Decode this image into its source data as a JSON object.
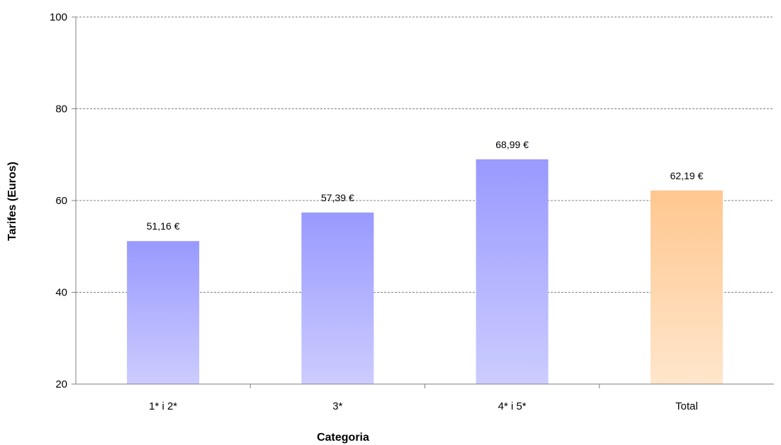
{
  "chart_data": {
    "type": "bar",
    "categories": [
      "1* i 2*",
      "3*",
      "4* i 5*",
      "Total"
    ],
    "values": [
      51.16,
      57.39,
      68.99,
      62.19
    ],
    "data_labels": [
      "51,16 €",
      "57,39 €",
      "68,99 €",
      "62,19 €"
    ],
    "xlabel": "Categoria",
    "ylabel": "Tarifes (Euros)",
    "ylim": [
      20,
      100
    ],
    "yticks": [
      20,
      40,
      60,
      80,
      100
    ],
    "grid": true,
    "legend": "none",
    "colors": {
      "bar_top": "#9999ff",
      "bar_bottom": "#ccccff",
      "total_top": "#ffc78f",
      "total_bottom": "#ffe6cc",
      "grid": "#808080",
      "axis": "#808080"
    }
  }
}
